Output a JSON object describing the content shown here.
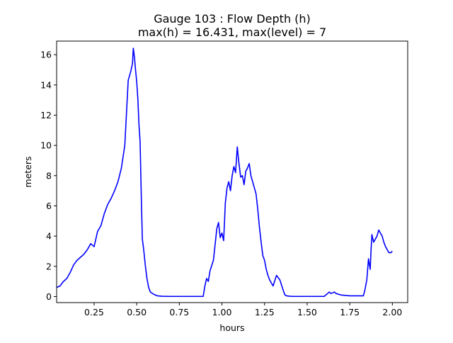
{
  "chart_data": {
    "type": "line",
    "title_line1": "Gauge 103 : Flow Depth (h)",
    "title_line2": "max(h) =  16.431,    max(level) = 7",
    "xlabel": "hours",
    "ylabel": "meters",
    "xlim": [
      0.03,
      2.09
    ],
    "ylim": [
      -0.4,
      16.9
    ],
    "x_ticks": [
      0.25,
      0.5,
      0.75,
      1.0,
      1.25,
      1.5,
      1.75,
      2.0
    ],
    "x_tick_labels": [
      "0.25",
      "0.50",
      "0.75",
      "1.00",
      "1.25",
      "1.50",
      "1.75",
      "2.00"
    ],
    "y_ticks": [
      0,
      2,
      4,
      6,
      8,
      10,
      12,
      14,
      16
    ],
    "y_tick_labels": [
      "0",
      "2",
      "4",
      "6",
      "8",
      "10",
      "12",
      "14",
      "16"
    ],
    "grid": false,
    "series": [
      {
        "color": "#0000ff",
        "x": [
          0.03,
          0.05,
          0.07,
          0.09,
          0.11,
          0.13,
          0.15,
          0.17,
          0.19,
          0.21,
          0.23,
          0.25,
          0.27,
          0.29,
          0.31,
          0.33,
          0.35,
          0.37,
          0.39,
          0.41,
          0.43,
          0.45,
          0.465,
          0.475,
          0.48,
          0.487,
          0.493,
          0.5,
          0.507,
          0.513,
          0.52,
          0.527,
          0.533,
          0.54,
          0.55,
          0.56,
          0.57,
          0.58,
          0.6,
          0.62,
          0.65,
          0.7,
          0.75,
          0.8,
          0.85,
          0.89,
          0.9,
          0.91,
          0.92,
          0.93,
          0.95,
          0.97,
          0.98,
          0.99,
          1.0,
          1.01,
          1.02,
          1.03,
          1.04,
          1.05,
          1.06,
          1.07,
          1.08,
          1.09,
          1.1,
          1.11,
          1.12,
          1.13,
          1.14,
          1.15,
          1.16,
          1.17,
          1.18,
          1.19,
          1.2,
          1.21,
          1.22,
          1.23,
          1.24,
          1.25,
          1.26,
          1.27,
          1.28,
          1.3,
          1.32,
          1.34,
          1.36,
          1.37,
          1.38,
          1.39,
          1.4,
          1.42,
          1.45,
          1.5,
          1.55,
          1.6,
          1.63,
          1.64,
          1.66,
          1.67,
          1.7,
          1.75,
          1.8,
          1.83,
          1.84,
          1.85,
          1.86,
          1.87,
          1.875,
          1.88,
          1.89,
          1.9,
          1.91,
          1.92,
          1.93,
          1.94,
          1.95,
          1.96,
          1.98,
          1.99,
          2.0
        ],
        "y": [
          0.6,
          0.7,
          1.0,
          1.2,
          1.6,
          2.1,
          2.4,
          2.6,
          2.8,
          3.1,
          3.5,
          3.3,
          4.3,
          4.7,
          5.5,
          6.1,
          6.5,
          7.0,
          7.6,
          8.5,
          10.0,
          14.3,
          14.9,
          15.4,
          16.43,
          15.8,
          15.0,
          14.2,
          13.0,
          11.4,
          10.2,
          6.5,
          3.8,
          3.2,
          2.1,
          1.2,
          0.6,
          0.3,
          0.15,
          0.05,
          0.02,
          0.01,
          0.01,
          0.01,
          0.01,
          0.01,
          0.7,
          1.2,
          1.0,
          1.7,
          2.4,
          4.5,
          4.9,
          3.9,
          4.2,
          3.7,
          6.2,
          7.2,
          7.6,
          7.0,
          8.0,
          8.6,
          8.2,
          9.9,
          8.8,
          7.9,
          8.0,
          7.4,
          8.3,
          8.5,
          8.8,
          8.0,
          7.6,
          7.2,
          6.8,
          5.8,
          4.6,
          3.6,
          2.7,
          2.4,
          1.8,
          1.4,
          1.1,
          0.7,
          1.4,
          1.1,
          0.4,
          0.1,
          0.05,
          0.03,
          0.02,
          0.01,
          0.01,
          0.01,
          0.01,
          0.01,
          0.3,
          0.2,
          0.3,
          0.2,
          0.1,
          0.05,
          0.05,
          0.05,
          0.5,
          1.1,
          2.5,
          1.8,
          3.1,
          4.1,
          3.6,
          3.8,
          4.0,
          4.4,
          4.2,
          4.0,
          3.6,
          3.3,
          2.9,
          2.9,
          3.0
        ]
      }
    ]
  }
}
